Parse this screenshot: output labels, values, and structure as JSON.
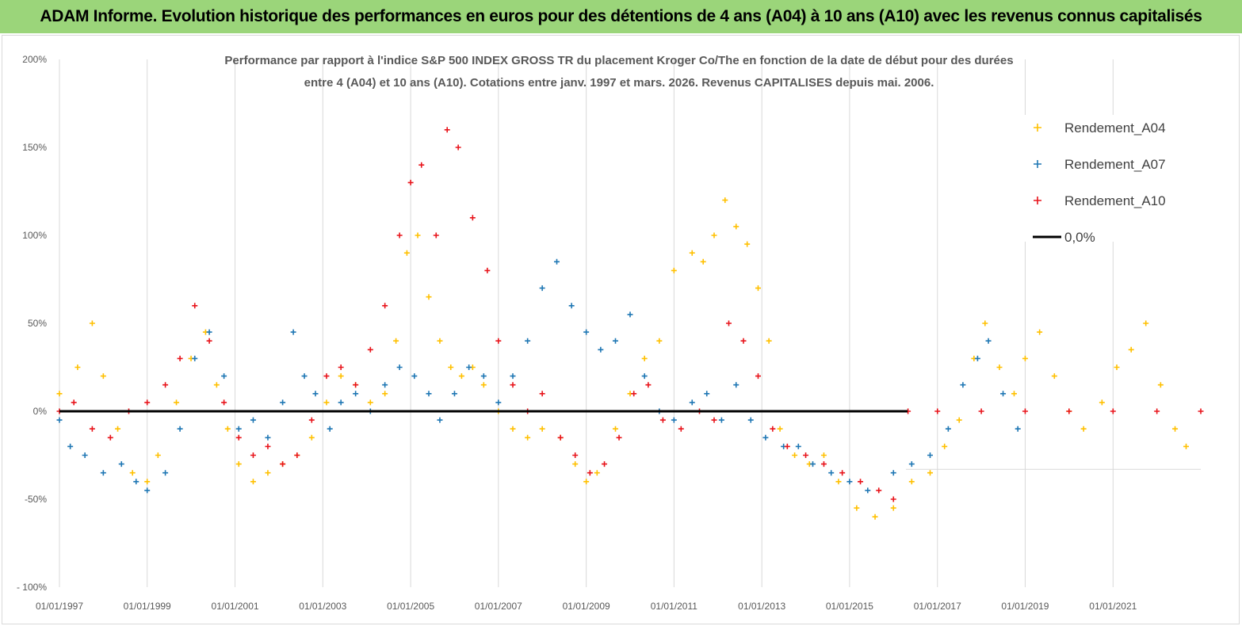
{
  "banner": {
    "title": "ADAM Informe. Evolution historique des performances en euros pour des détentions de 4 ans (A04) à 10 ans (A10) avec les revenus connus capitalisés"
  },
  "colors": {
    "banner_bg": "#9BD57A",
    "series_A04": "#FFC000",
    "series_A07": "#1F77B4",
    "series_A10": "#E8141B",
    "zero_line": "#000000",
    "grid": "#D9D9D9"
  },
  "chart_data": {
    "type": "scatter",
    "title_lines": [
      "Performance par rapport à l'indice S&P 500 INDEX GROSS TR  du placement Kroger Co/The en fonction de la date de début pour des durées",
      "entre 4 (A04) et 10 ans (A10). Cotations entre janv. 1997 et mars. 2026. Revenus CAPITALISES depuis mai. 2006."
    ],
    "xlabel": "",
    "ylabel": "",
    "x_tick_labels": [
      "01/01/1997",
      "01/01/1999",
      "01/01/2001",
      "01/01/2003",
      "01/01/2005",
      "01/01/2007",
      "01/01/2009",
      "01/01/2011",
      "01/01/2013",
      "01/01/2015",
      "01/01/2017",
      "01/01/2019",
      "01/01/2021"
    ],
    "x_range": [
      "1997-01-01",
      "2023-01-01"
    ],
    "y_tick_labels": [
      "200%",
      "150%",
      "100%",
      "50%",
      "0%",
      "-50%",
      "- 100%"
    ],
    "y_ticks": [
      200,
      150,
      100,
      50,
      0,
      -50,
      -100
    ],
    "ylim": [
      -100,
      200
    ],
    "grid": "vertical",
    "legend_position": "top-right",
    "legend": [
      {
        "label": "Rendement_A04",
        "marker": "plus",
        "color": "#FFC000"
      },
      {
        "label": "Rendement_A07",
        "marker": "plus",
        "color": "#1F77B4"
      },
      {
        "label": "Rendement_A10",
        "marker": "plus",
        "color": "#E8141B"
      },
      {
        "label": "0,0%",
        "marker": "line",
        "color": "#000000"
      }
    ],
    "series": [
      {
        "name": "Rendement_A04",
        "points": [
          [
            "1997-01-01",
            10
          ],
          [
            "1997-06-01",
            25
          ],
          [
            "1997-10-01",
            50
          ],
          [
            "1998-01-01",
            20
          ],
          [
            "1998-05-01",
            -10
          ],
          [
            "1998-09-01",
            -35
          ],
          [
            "1999-01-01",
            -40
          ],
          [
            "1999-04-01",
            -25
          ],
          [
            "1999-09-01",
            5
          ],
          [
            "2000-01-01",
            30
          ],
          [
            "2000-05-01",
            45
          ],
          [
            "2000-08-01",
            15
          ],
          [
            "2000-11-01",
            -10
          ],
          [
            "2001-02-01",
            -30
          ],
          [
            "2001-06-01",
            -40
          ],
          [
            "2001-10-01",
            -35
          ],
          [
            "2002-02-01",
            -30
          ],
          [
            "2002-06-01",
            -25
          ],
          [
            "2002-10-01",
            -15
          ],
          [
            "2003-02-01",
            5
          ],
          [
            "2003-06-01",
            20
          ],
          [
            "2003-10-01",
            15
          ],
          [
            "2004-02-01",
            5
          ],
          [
            "2004-06-01",
            10
          ],
          [
            "2004-09-01",
            40
          ],
          [
            "2004-12-01",
            90
          ],
          [
            "2005-03-01",
            100
          ],
          [
            "2005-06-01",
            65
          ],
          [
            "2005-09-01",
            40
          ],
          [
            "2005-12-01",
            25
          ],
          [
            "2006-03-01",
            20
          ],
          [
            "2006-06-01",
            25
          ],
          [
            "2006-09-01",
            15
          ],
          [
            "2007-01-01",
            0
          ],
          [
            "2007-05-01",
            -10
          ],
          [
            "2007-09-01",
            -15
          ],
          [
            "2008-01-01",
            -10
          ],
          [
            "2008-06-01",
            -15
          ],
          [
            "2008-10-01",
            -30
          ],
          [
            "2009-01-01",
            -40
          ],
          [
            "2009-04-01",
            -35
          ],
          [
            "2009-09-01",
            -10
          ],
          [
            "2010-01-01",
            10
          ],
          [
            "2010-05-01",
            30
          ],
          [
            "2010-09-01",
            40
          ],
          [
            "2011-01-01",
            80
          ],
          [
            "2011-06-01",
            90
          ],
          [
            "2011-09-01",
            85
          ],
          [
            "2011-12-01",
            100
          ],
          [
            "2012-03-01",
            120
          ],
          [
            "2012-06-01",
            105
          ],
          [
            "2012-09-01",
            95
          ],
          [
            "2012-12-01",
            70
          ],
          [
            "2013-03-01",
            40
          ],
          [
            "2013-06-01",
            -10
          ],
          [
            "2013-10-01",
            -25
          ],
          [
            "2014-02-01",
            -30
          ],
          [
            "2014-06-01",
            -25
          ],
          [
            "2014-10-01",
            -40
          ],
          [
            "2015-03-01",
            -55
          ],
          [
            "2015-08-01",
            -60
          ],
          [
            "2016-01-01",
            -55
          ],
          [
            "2016-06-01",
            -40
          ],
          [
            "2016-11-01",
            -35
          ],
          [
            "2017-03-01",
            -20
          ],
          [
            "2017-07-01",
            -5
          ],
          [
            "2017-11-01",
            30
          ],
          [
            "2018-02-01",
            50
          ],
          [
            "2018-06-01",
            25
          ],
          [
            "2018-10-01",
            10
          ],
          [
            "2019-01-01",
            30
          ],
          [
            "2019-05-01",
            45
          ],
          [
            "2019-09-01",
            20
          ],
          [
            "2020-01-01",
            0
          ],
          [
            "2020-05-01",
            -10
          ],
          [
            "2020-10-01",
            5
          ],
          [
            "2021-02-01",
            25
          ],
          [
            "2021-06-01",
            35
          ],
          [
            "2021-10-01",
            50
          ],
          [
            "2022-02-01",
            15
          ],
          [
            "2022-06-01",
            -10
          ],
          [
            "2022-09-01",
            -20
          ]
        ]
      },
      {
        "name": "Rendement_A07",
        "points": [
          [
            "1997-01-01",
            -5
          ],
          [
            "1997-04-01",
            -20
          ],
          [
            "1997-08-01",
            -25
          ],
          [
            "1998-01-01",
            -35
          ],
          [
            "1998-06-01",
            -30
          ],
          [
            "1998-10-01",
            -40
          ],
          [
            "1999-01-01",
            -45
          ],
          [
            "1999-06-01",
            -35
          ],
          [
            "1999-10-01",
            -10
          ],
          [
            "2000-02-01",
            30
          ],
          [
            "2000-06-01",
            45
          ],
          [
            "2000-10-01",
            20
          ],
          [
            "2001-02-01",
            -10
          ],
          [
            "2001-06-01",
            -5
          ],
          [
            "2001-10-01",
            -15
          ],
          [
            "2002-02-01",
            5
          ],
          [
            "2002-05-01",
            45
          ],
          [
            "2002-08-01",
            20
          ],
          [
            "2002-11-01",
            10
          ],
          [
            "2003-03-01",
            -10
          ],
          [
            "2003-06-01",
            5
          ],
          [
            "2003-10-01",
            10
          ],
          [
            "2004-02-01",
            0
          ],
          [
            "2004-06-01",
            15
          ],
          [
            "2004-10-01",
            25
          ],
          [
            "2005-02-01",
            20
          ],
          [
            "2005-06-01",
            10
          ],
          [
            "2005-09-01",
            -5
          ],
          [
            "2006-01-01",
            10
          ],
          [
            "2006-05-01",
            25
          ],
          [
            "2006-09-01",
            20
          ],
          [
            "2007-01-01",
            5
          ],
          [
            "2007-05-01",
            20
          ],
          [
            "2007-09-01",
            40
          ],
          [
            "2008-01-01",
            70
          ],
          [
            "2008-05-01",
            85
          ],
          [
            "2008-09-01",
            60
          ],
          [
            "2009-01-01",
            45
          ],
          [
            "2009-05-01",
            35
          ],
          [
            "2009-09-01",
            40
          ],
          [
            "2010-01-01",
            55
          ],
          [
            "2010-05-01",
            20
          ],
          [
            "2010-09-01",
            0
          ],
          [
            "2011-01-01",
            -5
          ],
          [
            "2011-06-01",
            5
          ],
          [
            "2011-10-01",
            10
          ],
          [
            "2012-02-01",
            -5
          ],
          [
            "2012-06-01",
            15
          ],
          [
            "2012-10-01",
            -5
          ],
          [
            "2013-02-01",
            -15
          ],
          [
            "2013-07-01",
            -20
          ],
          [
            "2013-11-01",
            -20
          ],
          [
            "2014-03-01",
            -30
          ],
          [
            "2014-08-01",
            -35
          ],
          [
            "2015-01-01",
            -40
          ],
          [
            "2015-06-01",
            -45
          ],
          [
            "2016-01-01",
            -35
          ],
          [
            "2016-06-01",
            -30
          ],
          [
            "2016-11-01",
            -25
          ],
          [
            "2017-04-01",
            -10
          ],
          [
            "2017-08-01",
            15
          ],
          [
            "2017-12-01",
            30
          ],
          [
            "2018-03-01",
            40
          ],
          [
            "2018-07-01",
            10
          ],
          [
            "2018-11-01",
            -10
          ]
        ]
      },
      {
        "name": "Rendement_A10",
        "points": [
          [
            "1997-01-01",
            0
          ],
          [
            "1997-05-01",
            5
          ],
          [
            "1997-10-01",
            -10
          ],
          [
            "1998-03-01",
            -15
          ],
          [
            "1998-08-01",
            0
          ],
          [
            "1999-01-01",
            5
          ],
          [
            "1999-06-01",
            15
          ],
          [
            "1999-10-01",
            30
          ],
          [
            "2000-02-01",
            60
          ],
          [
            "2000-06-01",
            40
          ],
          [
            "2000-10-01",
            5
          ],
          [
            "2001-02-01",
            -15
          ],
          [
            "2001-06-01",
            -25
          ],
          [
            "2001-10-01",
            -20
          ],
          [
            "2002-02-01",
            -30
          ],
          [
            "2002-06-01",
            -25
          ],
          [
            "2002-10-01",
            -5
          ],
          [
            "2003-02-01",
            20
          ],
          [
            "2003-06-01",
            25
          ],
          [
            "2003-10-01",
            15
          ],
          [
            "2004-02-01",
            35
          ],
          [
            "2004-06-01",
            60
          ],
          [
            "2004-10-01",
            100
          ],
          [
            "2005-01-01",
            130
          ],
          [
            "2005-04-01",
            140
          ],
          [
            "2005-08-01",
            100
          ],
          [
            "2005-11-01",
            160
          ],
          [
            "2006-02-01",
            150
          ],
          [
            "2006-06-01",
            110
          ],
          [
            "2006-10-01",
            80
          ],
          [
            "2007-01-01",
            40
          ],
          [
            "2007-05-01",
            15
          ],
          [
            "2007-09-01",
            0
          ],
          [
            "2008-01-01",
            10
          ],
          [
            "2008-06-01",
            -15
          ],
          [
            "2008-10-01",
            -25
          ],
          [
            "2009-02-01",
            -35
          ],
          [
            "2009-06-01",
            -30
          ],
          [
            "2009-10-01",
            -15
          ],
          [
            "2010-02-01",
            10
          ],
          [
            "2010-06-01",
            15
          ],
          [
            "2010-10-01",
            -5
          ],
          [
            "2011-03-01",
            -10
          ],
          [
            "2011-08-01",
            0
          ],
          [
            "2011-12-01",
            -5
          ],
          [
            "2012-04-01",
            50
          ],
          [
            "2012-08-01",
            40
          ],
          [
            "2012-12-01",
            20
          ],
          [
            "2013-04-01",
            -10
          ],
          [
            "2013-08-01",
            -20
          ],
          [
            "2014-01-01",
            -25
          ],
          [
            "2014-06-01",
            -30
          ],
          [
            "2014-11-01",
            -35
          ],
          [
            "2015-04-01",
            -40
          ],
          [
            "2015-09-01",
            -45
          ],
          [
            "2016-01-01",
            -50
          ],
          [
            "2016-05-01",
            0
          ],
          [
            "2017-01-01",
            0
          ],
          [
            "2018-01-01",
            0
          ],
          [
            "2019-01-01",
            0
          ],
          [
            "2020-01-01",
            0
          ],
          [
            "2021-01-01",
            0
          ],
          [
            "2022-01-01",
            0
          ],
          [
            "2023-01-01",
            0
          ]
        ]
      },
      {
        "name": "0,0%",
        "type": "line",
        "points": [
          [
            "1997-01-01",
            0
          ],
          [
            "2023-01-01",
            0
          ]
        ]
      }
    ]
  }
}
